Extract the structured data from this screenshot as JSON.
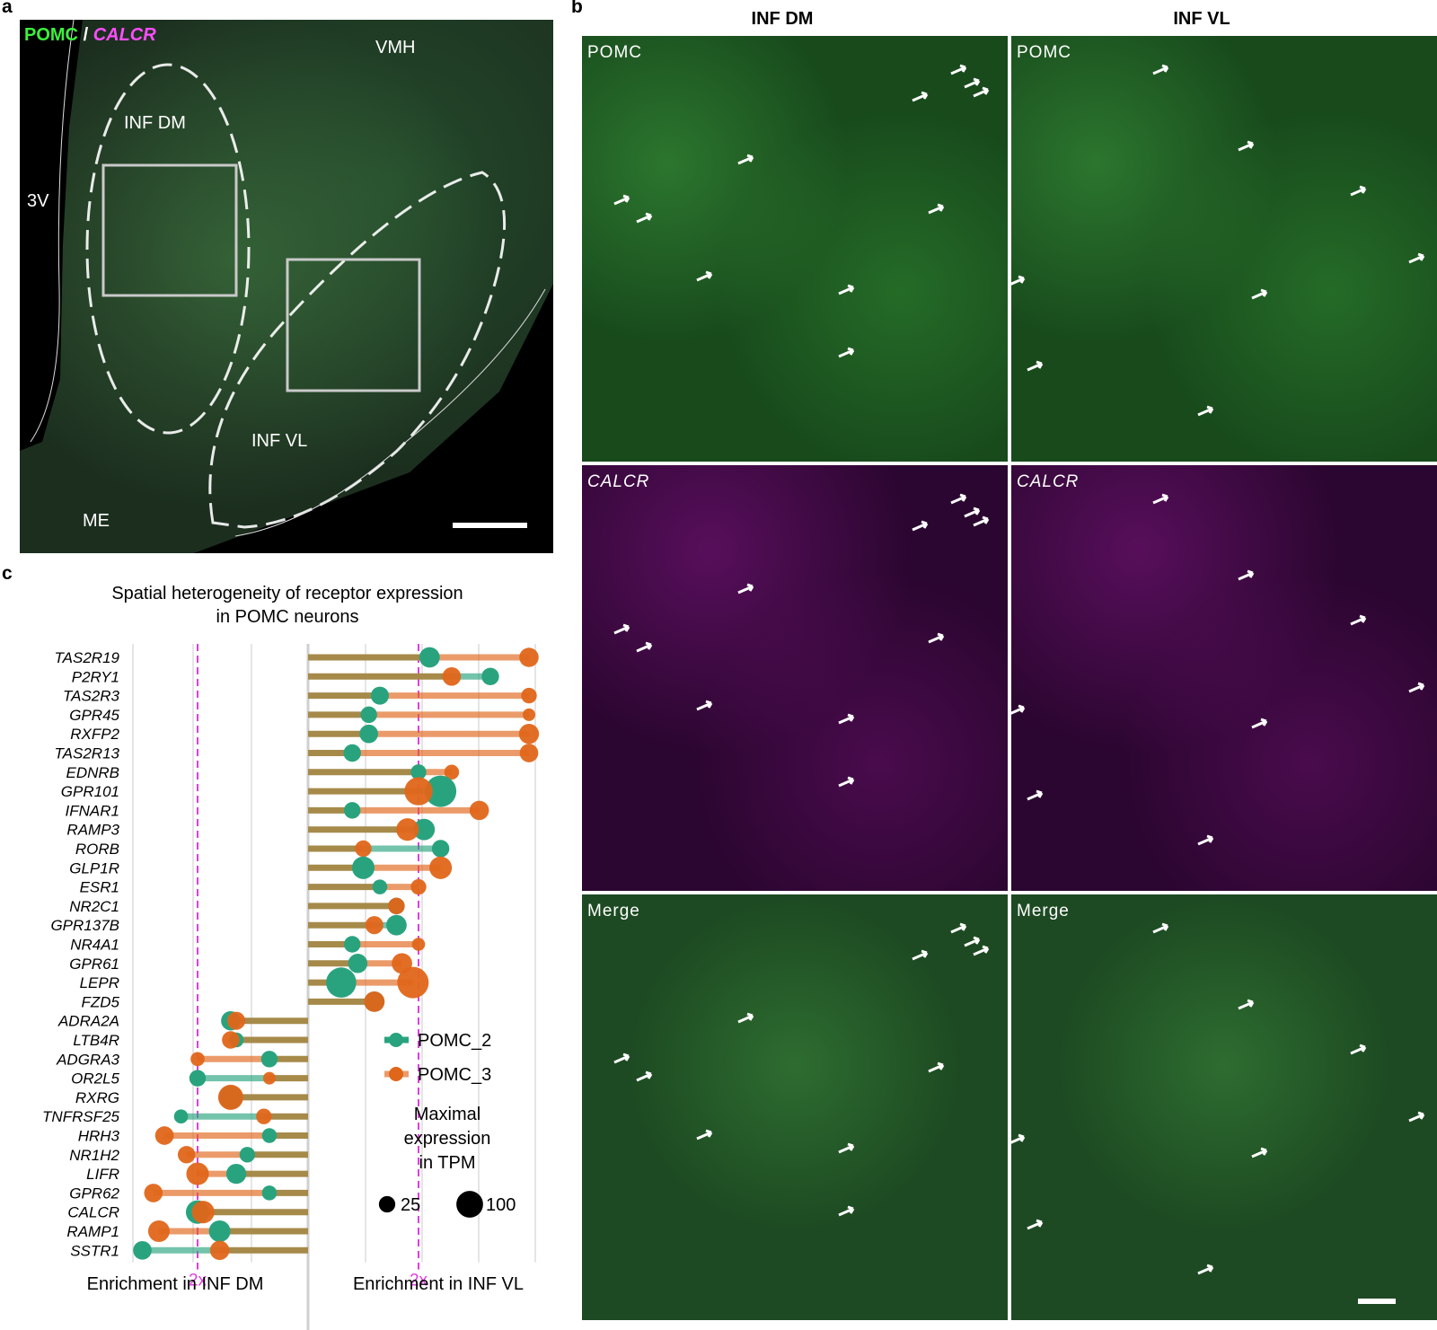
{
  "panel_labels": {
    "a": "a",
    "b": "b",
    "c": "c"
  },
  "panel_a": {
    "title_pomc": "POMC",
    "title_sep": "/",
    "title_calcr": "CALCR",
    "regions": {
      "vmh": "VMH",
      "inf_dm": "INF DM",
      "v3": "3V",
      "inf_vl": "INF VL",
      "me": "ME"
    }
  },
  "panel_b": {
    "col_inf_dm": "INF DM",
    "col_inf_vl": "INF VL",
    "row_pomc": "POMC",
    "row_calcr": "CALCR",
    "row_merge": "Merge"
  },
  "colors": {
    "pomc_2": "#29a37e",
    "pomc_3": "#e0661a",
    "shared": "#a68a4a",
    "marker": "#e23de0",
    "green_label": "#3cf03c",
    "magenta_label": "#ff4dff"
  },
  "chart_data": {
    "type": "dumbbell",
    "title": "Spatial heterogeneity of receptor expression in POMC neurons",
    "title_line1": "Spatial heterogeneity of receptor expression",
    "title_line2": "in POMC neurons",
    "xlabel_left": "Enrichment in INF DM",
    "xlabel_right": "Enrichment in INF VL",
    "marker_label": "2x",
    "series": [
      {
        "name": "POMC_2"
      },
      {
        "name": "POMC_3"
      }
    ],
    "size_legend": {
      "title_lines": [
        "Maximal",
        "expression",
        "in TPM"
      ],
      "values": [
        25,
        100
      ]
    },
    "genes_vl": [
      {
        "gene": "TAS2R19",
        "pomc_2": 2.2,
        "pomc_3": 4.0,
        "size2": 30,
        "size3": 25
      },
      {
        "gene": "P2RY1",
        "pomc_2": 3.3,
        "pomc_3": 2.6,
        "size2": 18,
        "size3": 22
      },
      {
        "gene": "TAS2R3",
        "pomc_2": 1.3,
        "pomc_3": 4.0,
        "size2": 20,
        "size3": 12
      },
      {
        "gene": "GPR45",
        "pomc_2": 1.1,
        "pomc_3": 4.0,
        "size2": 15,
        "size3": 5
      },
      {
        "gene": "RXFP2",
        "pomc_2": 1.1,
        "pomc_3": 4.0,
        "size2": 22,
        "size3": 28
      },
      {
        "gene": "TAS2R13",
        "pomc_2": 0.8,
        "pomc_3": 4.0,
        "size2": 18,
        "size3": 22
      },
      {
        "gene": "EDNRB",
        "pomc_2": 2.0,
        "pomc_3": 2.6,
        "size2": 12,
        "size3": 10
      },
      {
        "gene": "GPR101",
        "pomc_2": 2.4,
        "pomc_3": 2.0,
        "size2": 100,
        "size3": 75
      },
      {
        "gene": "IFNAR1",
        "pomc_2": 0.8,
        "pomc_3": 3.1,
        "size2": 15,
        "size3": 25
      },
      {
        "gene": "RAMP3",
        "pomc_2": 2.1,
        "pomc_3": 1.8,
        "size2": 35,
        "size3": 40
      },
      {
        "gene": "RORB",
        "pomc_2": 2.4,
        "pomc_3": 1.0,
        "size2": 18,
        "size3": 15
      },
      {
        "gene": "GLP1R",
        "pomc_2": 1.0,
        "pomc_3": 2.4,
        "size2": 40,
        "size3": 40
      },
      {
        "gene": "ESR1",
        "pomc_2": 1.3,
        "pomc_3": 2.0,
        "size2": 10,
        "size3": 12
      },
      {
        "gene": "NR2C1",
        "pomc_2": 1.6,
        "pomc_3": 1.6,
        "size2": 15,
        "size3": 15
      },
      {
        "gene": "GPR137B",
        "pomc_2": 1.6,
        "pomc_3": 1.2,
        "size2": 30,
        "size3": 20
      },
      {
        "gene": "NR4A1",
        "pomc_2": 0.8,
        "pomc_3": 2.0,
        "size2": 15,
        "size3": 6
      },
      {
        "gene": "GPR61",
        "pomc_2": 0.9,
        "pomc_3": 1.7,
        "size2": 25,
        "size3": 30
      },
      {
        "gene": "LEPR",
        "pomc_2": 0.6,
        "pomc_3": 1.9,
        "size2": 90,
        "size3": 100
      },
      {
        "gene": "FZD5",
        "pomc_2": 1.2,
        "pomc_3": 1.2,
        "size2": 30,
        "size3": 30
      }
    ],
    "genes_dm": [
      {
        "gene": "ADRA2A",
        "pomc_2": 1.4,
        "pomc_3": 1.3,
        "size2": 25,
        "size3": 20
      },
      {
        "gene": "LTB4R",
        "pomc_2": 1.3,
        "pomc_3": 1.4,
        "size2": 10,
        "size3": 18
      },
      {
        "gene": "ADGRA3",
        "pomc_2": 0.7,
        "pomc_3": 2.0,
        "size2": 15,
        "size3": 8
      },
      {
        "gene": "OR2L5",
        "pomc_2": 2.0,
        "pomc_3": 0.7,
        "size2": 15,
        "size3": 5
      },
      {
        "gene": "RXRG",
        "pomc_2": 1.4,
        "pomc_3": 1.4,
        "size2": 45,
        "size3": 55
      },
      {
        "gene": "TNFRSF25",
        "pomc_2": 2.3,
        "pomc_3": 0.8,
        "size2": 8,
        "size3": 12
      },
      {
        "gene": "HRH3",
        "pomc_2": 0.7,
        "pomc_3": 2.6,
        "size2": 10,
        "size3": 22
      },
      {
        "gene": "NR1H2",
        "pomc_2": 1.1,
        "pomc_3": 2.2,
        "size2": 12,
        "size3": 18
      },
      {
        "gene": "LIFR",
        "pomc_2": 1.3,
        "pomc_3": 2.0,
        "size2": 28,
        "size3": 40
      },
      {
        "gene": "GPR62",
        "pomc_2": 0.7,
        "pomc_3": 2.8,
        "size2": 10,
        "size3": 22
      },
      {
        "gene": "CALCR",
        "pomc_2": 2.0,
        "pomc_3": 1.9,
        "size2": 45,
        "size3": 40
      },
      {
        "gene": "RAMP1",
        "pomc_2": 1.6,
        "pomc_3": 2.7,
        "size2": 35,
        "size3": 35
      },
      {
        "gene": "SSTR1",
        "pomc_2": 3.0,
        "pomc_3": 1.6,
        "size2": 22,
        "size3": 25
      }
    ]
  }
}
